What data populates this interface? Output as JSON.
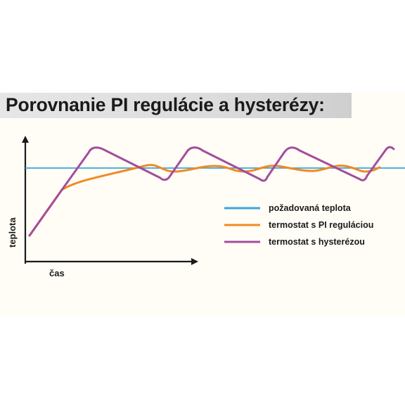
{
  "title": "Porovnanie PI regulácie a hysterézy:",
  "chart_data": {
    "type": "line",
    "xlabel": "čas",
    "ylabel": "teplota",
    "x_axis_ticks": false,
    "y_axis_ticks": false,
    "grid": false,
    "legend_position": "right",
    "colors": {
      "setpoint": "#3aa6dd",
      "pi": "#f08a24",
      "hysteresis": "#a44d9c"
    },
    "series": [
      {
        "key": "setpoint",
        "name": "požadovaná teplota",
        "shape": "horizontal-line"
      },
      {
        "key": "pi",
        "name": "termostat s PI reguláciou",
        "shape": "gradual rise then small oscillation around setpoint"
      },
      {
        "key": "hysteresis",
        "name": "termostat s hysterézou",
        "shape": "sawtooth oscillation above and below setpoint"
      }
    ]
  }
}
